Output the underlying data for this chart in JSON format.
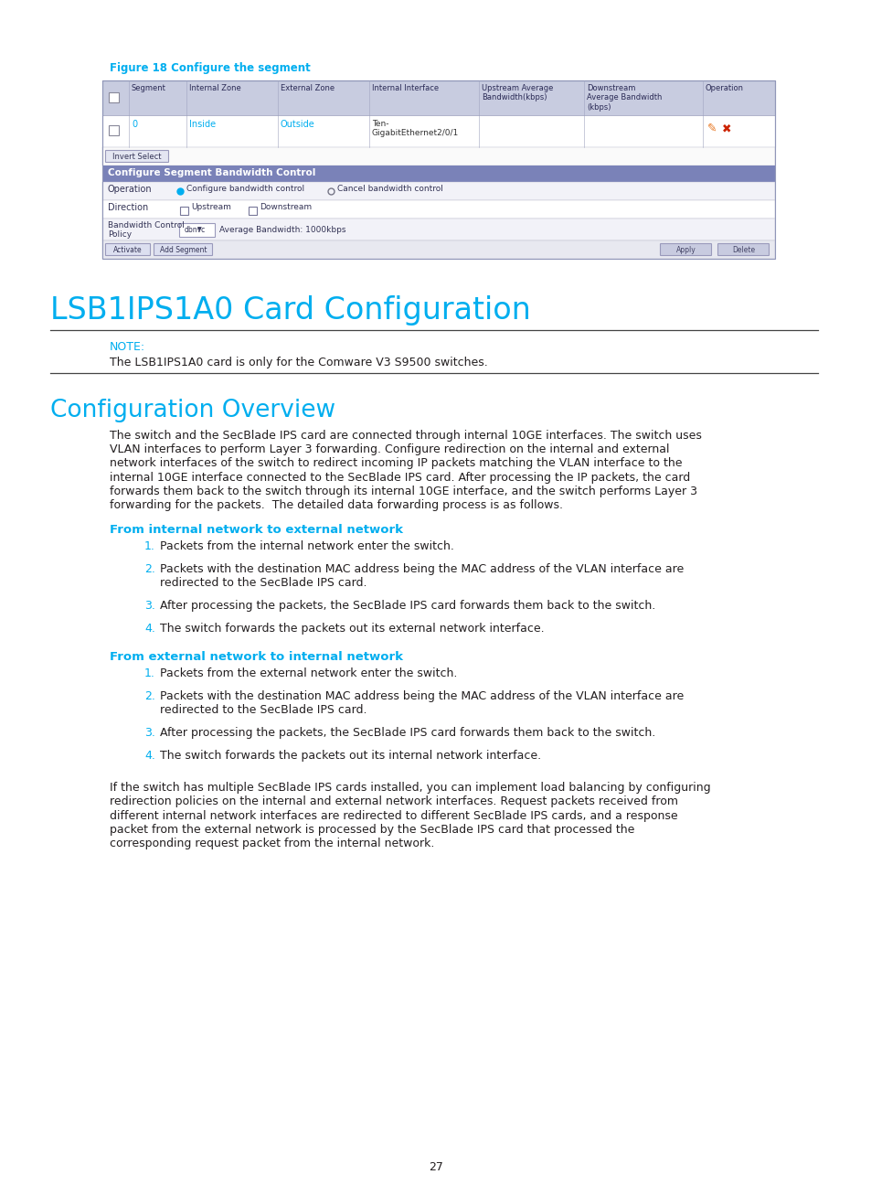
{
  "figure_caption": "Figure 18 Configure the segment",
  "section_title": "LSB1IPS1A0 Card Configuration",
  "note_label": "NOTE:",
  "note_text": "The LSB1IPS1A0 card is only for the Comware V3 S9500 switches.",
  "subsection_title": "Configuration Overview",
  "overview_text": "The switch and the SecBlade IPS card are connected through internal 10GE interfaces. The switch uses\nVLAN interfaces to perform Layer 3 forwarding. Configure redirection on the internal and external\nnetwork interfaces of the switch to redirect incoming IP packets matching the VLAN interface to the\ninternal 10GE interface connected to the SecBlade IPS card. After processing the IP packets, the card\nforwards them back to the switch through its internal 10GE interface, and the switch performs Layer 3\nforwarding for the packets.  The detailed data forwarding process is as follows.",
  "subheading1": "From internal network to external network",
  "internal_items": [
    "Packets from the internal network enter the switch.",
    "Packets with the destination MAC address being the MAC address of the VLAN interface are\nredirected to the SecBlade IPS card.",
    "After processing the packets, the SecBlade IPS card forwards them back to the switch.",
    "The switch forwards the packets out its external network interface."
  ],
  "subheading2": "From external network to internal network",
  "external_items": [
    "Packets from the external network enter the switch.",
    "Packets with the destination MAC address being the MAC address of the VLAN interface are\nredirected to the SecBlade IPS card.",
    "After processing the packets, the SecBlade IPS card forwards them back to the switch.",
    "The switch forwards the packets out its internal network interface."
  ],
  "closing_text": "If the switch has multiple SecBlade IPS cards installed, you can implement load balancing by configuring\nredirection policies on the internal and external network interfaces. Request packets received from\ndifferent internal network interfaces are redirected to different SecBlade IPS cards, and a response\npacket from the external network is processed by the SecBlade IPS card that processed the\ncorresponding request packet from the internal network.",
  "page_number": "27",
  "cyan_color": "#00AEEF",
  "dark_text": "#231F20",
  "bg_color": "#FFFFFF",
  "table_header_bg": "#C8CCE0",
  "table_blue_header": "#7A82B8",
  "note_line_color": "#888888"
}
